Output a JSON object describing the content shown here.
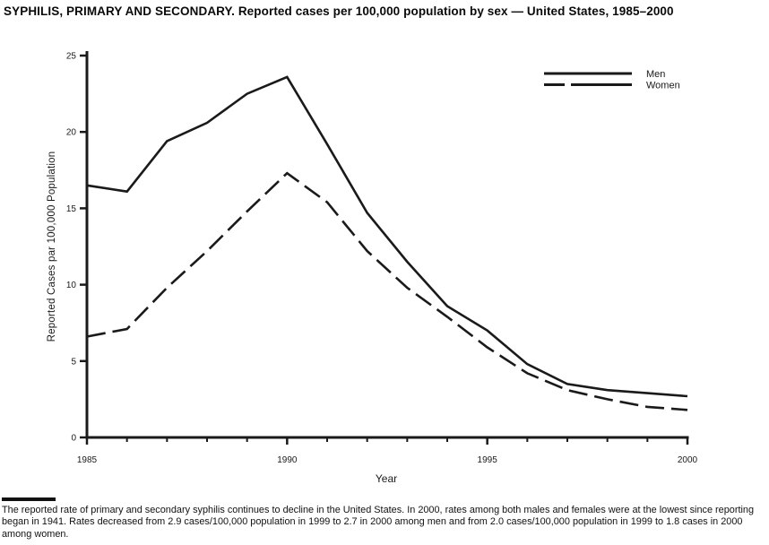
{
  "header": {
    "title": "SYPHILIS, PRIMARY AND SECONDARY. Reported cases per 100,000 population by sex — United States, 1985–2000"
  },
  "chart_data": {
    "type": "line",
    "title": "SYPHILIS, PRIMARY AND SECONDARY. Reported cases per 100,000 population by sex — United States, 1985–2000",
    "xlabel": "Year",
    "ylabel": "Reported Cases par 100,000 Population",
    "x": [
      1985,
      1986,
      1987,
      1988,
      1989,
      1990,
      1991,
      1992,
      1993,
      1994,
      1995,
      1996,
      1997,
      1998,
      1999,
      2000
    ],
    "series": [
      {
        "name": "Men",
        "style": "solid",
        "values": [
          16.5,
          16.1,
          19.4,
          20.6,
          22.5,
          23.6,
          19.2,
          14.7,
          11.5,
          8.6,
          7.0,
          4.8,
          3.5,
          3.1,
          2.9,
          2.7
        ]
      },
      {
        "name": "Women",
        "style": "dashed",
        "values": [
          6.6,
          7.1,
          9.8,
          12.2,
          14.8,
          17.3,
          15.4,
          12.2,
          9.8,
          7.9,
          5.9,
          4.2,
          3.1,
          2.5,
          2.0,
          1.8
        ]
      }
    ],
    "ylim": [
      0,
      25
    ],
    "yticks": [
      0,
      5,
      10,
      15,
      20,
      25
    ],
    "xticks_major": [
      1985,
      1990,
      1995,
      2000
    ],
    "xticks_minor_every": 1,
    "legend_position": "top-right",
    "grid": false,
    "line_color": "#1a1a1a",
    "background_color": "#ffffff"
  },
  "footer": {
    "caption": "The reported rate of primary and secondary syphilis continues to decline in the United States. In 2000, rates among both males and females were at the lowest since reporting began in 1941. Rates decreased from 2.9 cases/100,000 population in 1999 to 2.7 in 2000 among men and from 2.0 cases/100,000 population in 1999 to 1.8 cases in 2000 among women."
  }
}
